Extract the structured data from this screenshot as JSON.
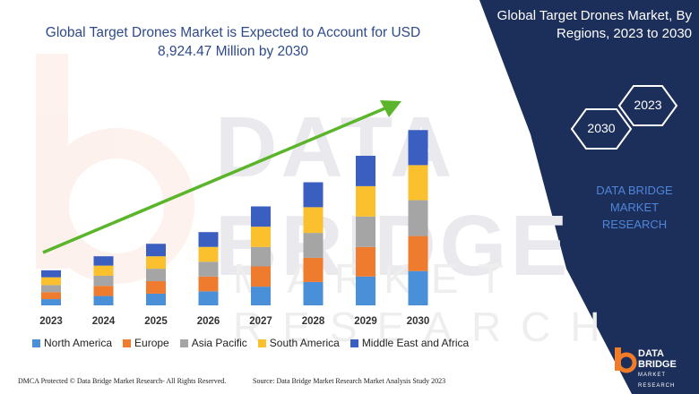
{
  "header": {
    "title": "Global Target Drones Market is Expected to Account for USD 8,924.47 Million by 2030"
  },
  "side_panel": {
    "title": "Global Target Drones Market, By Regions, 2023 to 2030",
    "hex_a": "2023",
    "hex_b": "2030",
    "brand_line1": "DATA BRIDGE MARKET",
    "brand_line2": "RESEARCH",
    "panel_color": "#1c2e5a"
  },
  "watermark": {
    "line1": "DATA BRIDGE",
    "line2": "MARKET RESEARCH"
  },
  "logo": {
    "name": "DATA BRIDGE",
    "sub": "MARKET RESEARCH",
    "icon": "data-bridge-logo-icon"
  },
  "footer": {
    "dmca": "DMCA Protected © Data Bridge Market Research- All Rights Reserved.",
    "source": "Source: Data Bridge Market Research Market Analysis Study 2023"
  },
  "chart_data": {
    "type": "bar",
    "stacked": true,
    "title": "Global Target Drones Market is Expected to Account for USD 8,924.47 Million by 2030",
    "xlabel": "",
    "ylabel": "",
    "categories": [
      "2023",
      "2024",
      "2025",
      "2026",
      "2027",
      "2028",
      "2029",
      "2030"
    ],
    "series": [
      {
        "name": "North America",
        "color": "#4a90d9",
        "values": [
          8,
          12,
          15,
          18,
          24,
          30,
          37,
          44
        ]
      },
      {
        "name": "Europe",
        "color": "#ef7b2f",
        "values": [
          9,
          13,
          16,
          19,
          26,
          31,
          38,
          45
        ]
      },
      {
        "name": "Asia Pacific",
        "color": "#a5a5a5",
        "values": [
          9,
          13,
          16,
          19,
          25,
          32,
          39,
          46
        ]
      },
      {
        "name": "South America",
        "color": "#fbc02d",
        "values": [
          10,
          13,
          16,
          19,
          26,
          33,
          39,
          45
        ]
      },
      {
        "name": "Middle East and Africa",
        "color": "#3b5fc0",
        "values": [
          9,
          12,
          16,
          19,
          26,
          32,
          39,
          45
        ]
      }
    ],
    "trend_arrow_color": "#5ab52a",
    "grid": false,
    "legend_position": "bottom"
  }
}
